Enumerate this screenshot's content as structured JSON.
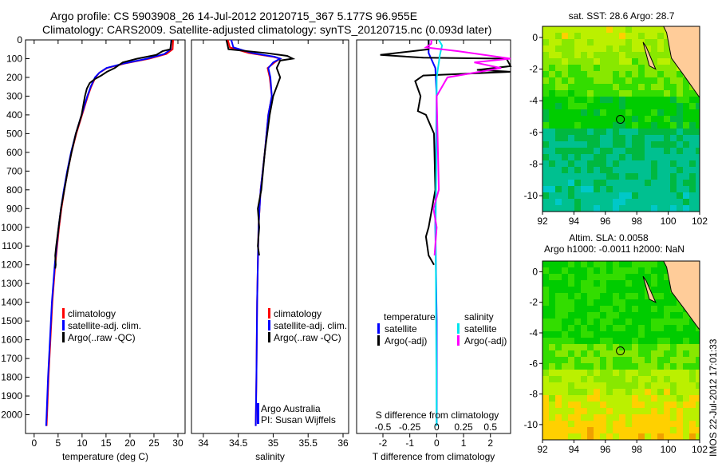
{
  "header": {
    "line1": "Argo profile: CS 5903908_26 14-Jul-2012 20120715_367 5.177S 96.955E",
    "line2": "Climatology: CARS2009. Satellite-adjusted climatology: synTS_20120715.nc (0.093d later)"
  },
  "colors": {
    "climatology": "#ff0000",
    "satellite": "#0000ff",
    "argo": "#000000",
    "sat_s": "#00e5ee",
    "argo_s": "#ff00ff",
    "land": "#ffcc99"
  },
  "chart_data": [
    {
      "type": "line",
      "id": "temp",
      "xlabel": "temperature (deg C)",
      "xlim": [
        -1.8,
        31.5
      ],
      "ylim": [
        0,
        2100
      ],
      "xticks": [
        0,
        5,
        10,
        15,
        20,
        25,
        30
      ],
      "yticks": [
        0,
        100,
        200,
        300,
        400,
        500,
        600,
        700,
        800,
        900,
        1000,
        1100,
        1200,
        1300,
        1400,
        1500,
        1600,
        1700,
        1800,
        1900,
        2000
      ],
      "legend": [
        "climatology",
        "satellite-adj. clim.",
        "Argo(..raw -QC)"
      ],
      "series": [
        {
          "name": "climatology",
          "color": "#ff0000",
          "points": [
            [
              29,
              0
            ],
            [
              28.9,
              50
            ],
            [
              27.6,
              75
            ],
            [
              24,
              100
            ],
            [
              19,
              125
            ],
            [
              15.2,
              150
            ],
            [
              13.6,
              175
            ],
            [
              12.8,
              200
            ],
            [
              11.9,
              250
            ],
            [
              11.2,
              300
            ],
            [
              10,
              400
            ],
            [
              8.8,
              500
            ],
            [
              7.8,
              600
            ],
            [
              7,
              700
            ],
            [
              6.3,
              800
            ],
            [
              5.7,
              900
            ],
            [
              5.2,
              1000
            ],
            [
              4.4,
              1200
            ],
            [
              3.8,
              1400
            ],
            [
              3.4,
              1600
            ],
            [
              3,
              1800
            ],
            [
              2.7,
              2000
            ],
            [
              2.6,
              2060
            ]
          ]
        },
        {
          "name": "satellite-adj. clim.",
          "color": "#0000ff",
          "points": [
            [
              28.6,
              0
            ],
            [
              28.5,
              50
            ],
            [
              27.2,
              75
            ],
            [
              23.6,
              100
            ],
            [
              18.8,
              125
            ],
            [
              15.1,
              150
            ],
            [
              13.6,
              175
            ],
            [
              12.7,
              200
            ],
            [
              11.8,
              250
            ],
            [
              11.1,
              300
            ],
            [
              9.9,
              400
            ],
            [
              8.7,
              500
            ],
            [
              7.7,
              600
            ],
            [
              6.9,
              700
            ],
            [
              6.2,
              800
            ],
            [
              5.6,
              900
            ],
            [
              5.1,
              1000
            ],
            [
              4.3,
              1200
            ],
            [
              3.7,
              1400
            ],
            [
              3.3,
              1600
            ],
            [
              2.9,
              1800
            ],
            [
              2.6,
              2000
            ],
            [
              2.5,
              2060
            ]
          ]
        },
        {
          "name": "Argo(..raw -QC)",
          "color": "#000000",
          "points": [
            [
              28.7,
              0
            ],
            [
              28.4,
              50
            ],
            [
              26.8,
              60
            ],
            [
              25.5,
              80
            ],
            [
              21.5,
              100
            ],
            [
              18.5,
              120
            ],
            [
              16.8,
              150
            ],
            [
              15.2,
              170
            ],
            [
              14,
              190
            ],
            [
              12.6,
              210
            ],
            [
              11.6,
              230
            ],
            [
              11,
              260
            ],
            [
              10.6,
              300
            ],
            [
              9.9,
              400
            ],
            [
              8.7,
              500
            ],
            [
              7.8,
              600
            ],
            [
              7,
              700
            ],
            [
              6.3,
              800
            ],
            [
              5.6,
              900
            ],
            [
              5.1,
              1000
            ],
            [
              4.6,
              1100
            ],
            [
              4.4,
              1150
            ],
            [
              4.5,
              1200
            ],
            [
              4.4,
              1220
            ]
          ]
        }
      ]
    },
    {
      "type": "line",
      "id": "sal",
      "xlabel": "salinity",
      "xlim": [
        33.83,
        36.08
      ],
      "ylim": [
        0,
        2100
      ],
      "xticks": [
        34,
        34.5,
        35,
        35.5,
        36
      ],
      "yticks": [],
      "legend": [
        "climatology",
        "satellite-adj. clim.",
        "Argo(..raw -QC)"
      ],
      "credit": [
        "Argo Australia",
        "PI: Susan Wijffels"
      ],
      "series": [
        {
          "name": "climatology",
          "color": "#ff0000",
          "points": [
            [
              34.35,
              0
            ],
            [
              34.38,
              40
            ],
            [
              34.65,
              70
            ],
            [
              35.0,
              90
            ],
            [
              35.1,
              100
            ],
            [
              35.02,
              120
            ],
            [
              34.92,
              150
            ],
            [
              34.95,
              200
            ],
            [
              34.98,
              300
            ],
            [
              34.93,
              400
            ],
            [
              34.88,
              600
            ],
            [
              34.82,
              800
            ],
            [
              34.79,
              1000
            ],
            [
              34.77,
              1400
            ],
            [
              34.76,
              1800
            ],
            [
              34.75,
              2060
            ]
          ]
        },
        {
          "name": "satellite-adj. clim.",
          "color": "#0000ff",
          "points": [
            [
              34.4,
              0
            ],
            [
              34.43,
              40
            ],
            [
              34.7,
              70
            ],
            [
              35.02,
              90
            ],
            [
              35.1,
              100
            ],
            [
              35.0,
              120
            ],
            [
              34.93,
              150
            ],
            [
              34.96,
              200
            ],
            [
              34.98,
              300
            ],
            [
              34.93,
              400
            ],
            [
              34.88,
              600
            ],
            [
              34.82,
              800
            ],
            [
              34.79,
              1000
            ],
            [
              34.77,
              1400
            ],
            [
              34.76,
              1800
            ],
            [
              34.75,
              2060
            ]
          ]
        },
        {
          "name": "Argo(..raw -QC)",
          "color": "#000000",
          "points": [
            [
              34.33,
              0
            ],
            [
              34.36,
              50
            ],
            [
              34.9,
              70
            ],
            [
              35.2,
              85
            ],
            [
              35.28,
              100
            ],
            [
              35.1,
              110
            ],
            [
              35.05,
              150
            ],
            [
              35.1,
              200
            ],
            [
              35.0,
              300
            ],
            [
              34.95,
              400
            ],
            [
              34.88,
              600
            ],
            [
              34.83,
              800
            ],
            [
              34.78,
              900
            ],
            [
              34.8,
              1000
            ],
            [
              34.78,
              1100
            ],
            [
              34.8,
              1150
            ]
          ]
        }
      ]
    },
    {
      "type": "line",
      "id": "diff",
      "xlabel": "T difference from climatology",
      "x2label": "S difference from climatology",
      "xlim": [
        -2.98,
        2.75
      ],
      "ylim": [
        0,
        2100
      ],
      "xticks": [
        -2,
        -1,
        0,
        1,
        2
      ],
      "x2ticks": [
        -0.5,
        -0.25,
        0,
        0.25,
        0.5
      ],
      "legend_headers": [
        "temperature",
        "salinity"
      ],
      "legend": [
        "satellite",
        "Argo(-adj)",
        "satellite",
        "Argo(-adj)"
      ],
      "series": [
        {
          "name": "T satellite",
          "color": "#0000ff",
          "points": [
            [
              -0.3,
              0
            ],
            [
              -0.3,
              70
            ],
            [
              -0.05,
              150
            ],
            [
              0,
              300
            ],
            [
              -0.05,
              1000
            ],
            [
              0,
              1500
            ],
            [
              0,
              2060
            ]
          ]
        },
        {
          "name": "T Argo(-adj)",
          "color": "#000000",
          "points": [
            [
              -0.3,
              0
            ],
            [
              -0.3,
              50
            ],
            [
              -0.9,
              60
            ],
            [
              -2.1,
              80
            ],
            [
              -0.5,
              95
            ],
            [
              2.6,
              100
            ],
            [
              3,
              140
            ],
            [
              1.5,
              160
            ],
            [
              2.8,
              170
            ],
            [
              -0.5,
              190
            ],
            [
              -0.8,
              220
            ],
            [
              -0.6,
              300
            ],
            [
              -0.7,
              380
            ],
            [
              -0.4,
              400
            ],
            [
              -0.1,
              500
            ],
            [
              -0.05,
              800
            ],
            [
              -0.3,
              1000
            ],
            [
              -0.4,
              1050
            ],
            [
              -0.3,
              1150
            ],
            [
              -0.1,
              1200
            ]
          ]
        },
        {
          "name": "S satellite",
          "color": "#00e5ee",
          "points": [
            [
              0.02,
              0
            ],
            [
              0.05,
              30
            ],
            [
              0.03,
              80
            ],
            [
              0.0,
              200
            ],
            [
              0.0,
              500
            ],
            [
              -0.01,
              1000
            ],
            [
              0,
              2060
            ]
          ]
        },
        {
          "name": "S Argo(-adj)",
          "color": "#ff00ff",
          "points": [
            [
              -0.05,
              0
            ],
            [
              -0.05,
              20
            ],
            [
              -0.1,
              40
            ],
            [
              0.2,
              60
            ],
            [
              0.8,
              100
            ],
            [
              0.35,
              120
            ],
            [
              0.6,
              150
            ],
            [
              0.1,
              200
            ],
            [
              0,
              300
            ],
            [
              0.02,
              800
            ],
            [
              -0.03,
              900
            ],
            [
              0,
              1000
            ],
            [
              -0.02,
              1150
            ]
          ]
        }
      ]
    },
    {
      "type": "heatmap",
      "id": "sst",
      "title": "sat. SST: 28.6 Argo: 28.7",
      "xlim": [
        92,
        102
      ],
      "ylim": [
        -11,
        0.7
      ],
      "xticks": [
        92,
        94,
        96,
        98,
        100,
        102
      ],
      "yticks": [
        0,
        -2,
        -4,
        -6,
        -8,
        -10
      ],
      "argo_position": [
        96.955,
        -5.177
      ]
    },
    {
      "type": "heatmap",
      "id": "sla",
      "title1": "Altim. SLA: 0.0058",
      "title2": "Argo h1000: -0.0011 h2000: NaN",
      "xlim": [
        92,
        102
      ],
      "ylim": [
        -11,
        0.7
      ],
      "xticks": [
        92,
        94,
        96,
        98,
        100,
        102
      ],
      "yticks": [
        0,
        -2,
        -4,
        -6,
        -8,
        -10
      ],
      "argo_position": [
        96.955,
        -5.177
      ]
    }
  ],
  "footer": {
    "stamp": "IMOS 22-Jul-2012 17:01:33"
  }
}
